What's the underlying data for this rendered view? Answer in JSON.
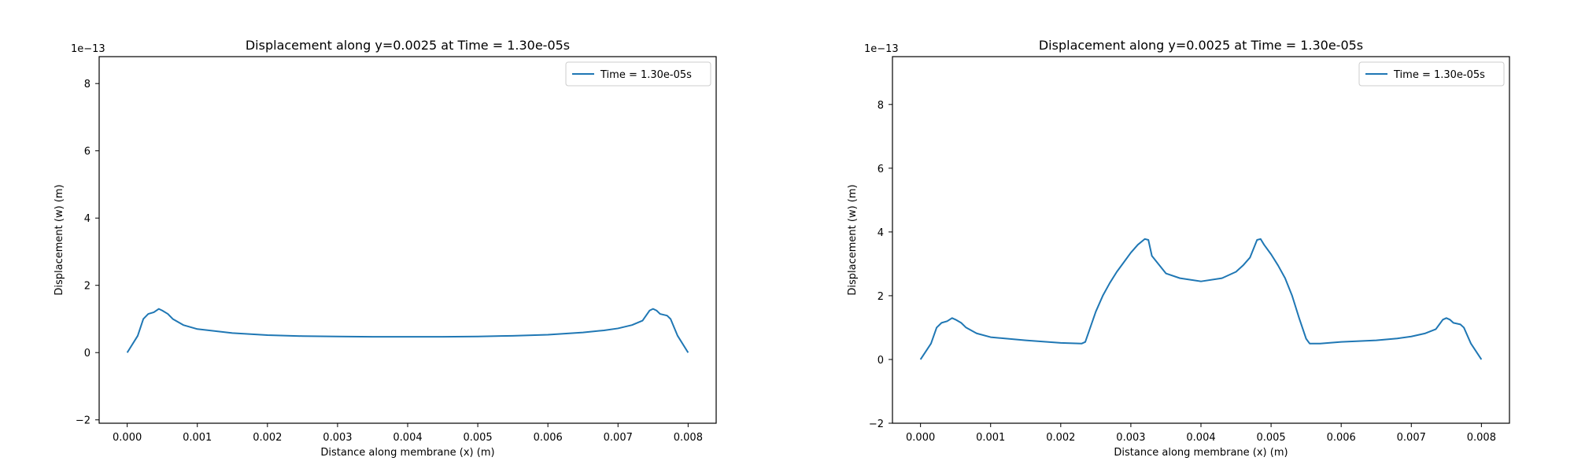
{
  "chart_data": [
    {
      "type": "line",
      "title": "Displacement along y=0.0025 at Time = 1.30e-05s",
      "xlabel": "Distance along membrane (x) (m)",
      "ylabel": "Displacement (w) (m)",
      "y_offset_label": "1e−13",
      "xlim": [
        -0.0004,
        0.0084
      ],
      "ylim": [
        -2.1,
        8.8
      ],
      "x_ticks": [
        0.0,
        0.001,
        0.002,
        0.003,
        0.004,
        0.005,
        0.006,
        0.007,
        0.008
      ],
      "x_tick_labels": [
        "0.000",
        "0.001",
        "0.002",
        "0.003",
        "0.004",
        "0.005",
        "0.006",
        "0.007",
        "0.008"
      ],
      "y_ticks": [
        -2,
        0,
        2,
        4,
        6,
        8
      ],
      "y_tick_labels": [
        "−2",
        "0",
        "2",
        "4",
        "6",
        "8"
      ],
      "grid": false,
      "legend_position": "top-right",
      "series": [
        {
          "name": "Time = 1.30e-05s",
          "color": "#1f77b4",
          "x": [
            0.0,
            0.00015,
            0.00023,
            0.0003,
            0.00038,
            0.00045,
            0.0005,
            0.00058,
            0.00065,
            0.0008,
            0.001,
            0.0015,
            0.002,
            0.0025,
            0.003,
            0.0035,
            0.004,
            0.0045,
            0.005,
            0.0055,
            0.006,
            0.0065,
            0.0068,
            0.007,
            0.0072,
            0.00735,
            0.0074,
            0.00745,
            0.0075,
            0.00755,
            0.0076,
            0.0077,
            0.00775,
            0.00785,
            0.008
          ],
          "y": [
            0.0,
            0.5,
            1.0,
            1.15,
            1.2,
            1.3,
            1.25,
            1.15,
            1.0,
            0.82,
            0.7,
            0.58,
            0.52,
            0.49,
            0.48,
            0.47,
            0.47,
            0.47,
            0.48,
            0.5,
            0.53,
            0.6,
            0.66,
            0.72,
            0.82,
            0.95,
            1.1,
            1.25,
            1.3,
            1.25,
            1.15,
            1.1,
            1.0,
            0.5,
            0.0
          ]
        }
      ]
    },
    {
      "type": "line",
      "title": "Displacement along y=0.0025 at Time = 1.30e-05s",
      "xlabel": "Distance along membrane (x) (m)",
      "ylabel": "Displacement (w) (m)",
      "y_offset_label": "1e−13",
      "xlim": [
        -0.0004,
        0.0084
      ],
      "ylim": [
        -2.0,
        9.5
      ],
      "x_ticks": [
        0.0,
        0.001,
        0.002,
        0.003,
        0.004,
        0.005,
        0.006,
        0.007,
        0.008
      ],
      "x_tick_labels": [
        "0.000",
        "0.001",
        "0.002",
        "0.003",
        "0.004",
        "0.005",
        "0.006",
        "0.007",
        "0.008"
      ],
      "y_ticks": [
        -2,
        0,
        2,
        4,
        6,
        8
      ],
      "y_tick_labels": [
        "−2",
        "0",
        "2",
        "4",
        "6",
        "8"
      ],
      "grid": false,
      "legend_position": "top-right",
      "series": [
        {
          "name": "Time = 1.30e-05s",
          "color": "#1f77b4",
          "x": [
            0.0,
            0.00015,
            0.00023,
            0.0003,
            0.00038,
            0.00045,
            0.0005,
            0.00058,
            0.00065,
            0.0008,
            0.001,
            0.0015,
            0.002,
            0.0023,
            0.00235,
            0.0025,
            0.0026,
            0.0027,
            0.0028,
            0.0029,
            0.003,
            0.0031,
            0.0032,
            0.00325,
            0.0033,
            0.0035,
            0.0037,
            0.004,
            0.0043,
            0.0045,
            0.0046,
            0.0047,
            0.0048,
            0.00485,
            0.0049,
            0.005,
            0.0051,
            0.0052,
            0.0053,
            0.0054,
            0.0055,
            0.00555,
            0.0057,
            0.006,
            0.0065,
            0.0068,
            0.007,
            0.0072,
            0.00735,
            0.0074,
            0.00745,
            0.0075,
            0.00755,
            0.0076,
            0.0077,
            0.00775,
            0.00785,
            0.008
          ],
          "y": [
            0.0,
            0.5,
            1.0,
            1.15,
            1.2,
            1.3,
            1.25,
            1.15,
            1.0,
            0.82,
            0.7,
            0.6,
            0.52,
            0.5,
            0.55,
            1.5,
            2.0,
            2.4,
            2.75,
            3.05,
            3.35,
            3.6,
            3.78,
            3.75,
            3.25,
            2.7,
            2.55,
            2.45,
            2.55,
            2.75,
            2.95,
            3.2,
            3.75,
            3.78,
            3.6,
            3.3,
            2.95,
            2.55,
            2.0,
            1.3,
            0.65,
            0.5,
            0.5,
            0.55,
            0.6,
            0.66,
            0.72,
            0.82,
            0.95,
            1.1,
            1.25,
            1.3,
            1.25,
            1.15,
            1.1,
            1.0,
            0.5,
            0.0
          ]
        }
      ]
    }
  ]
}
